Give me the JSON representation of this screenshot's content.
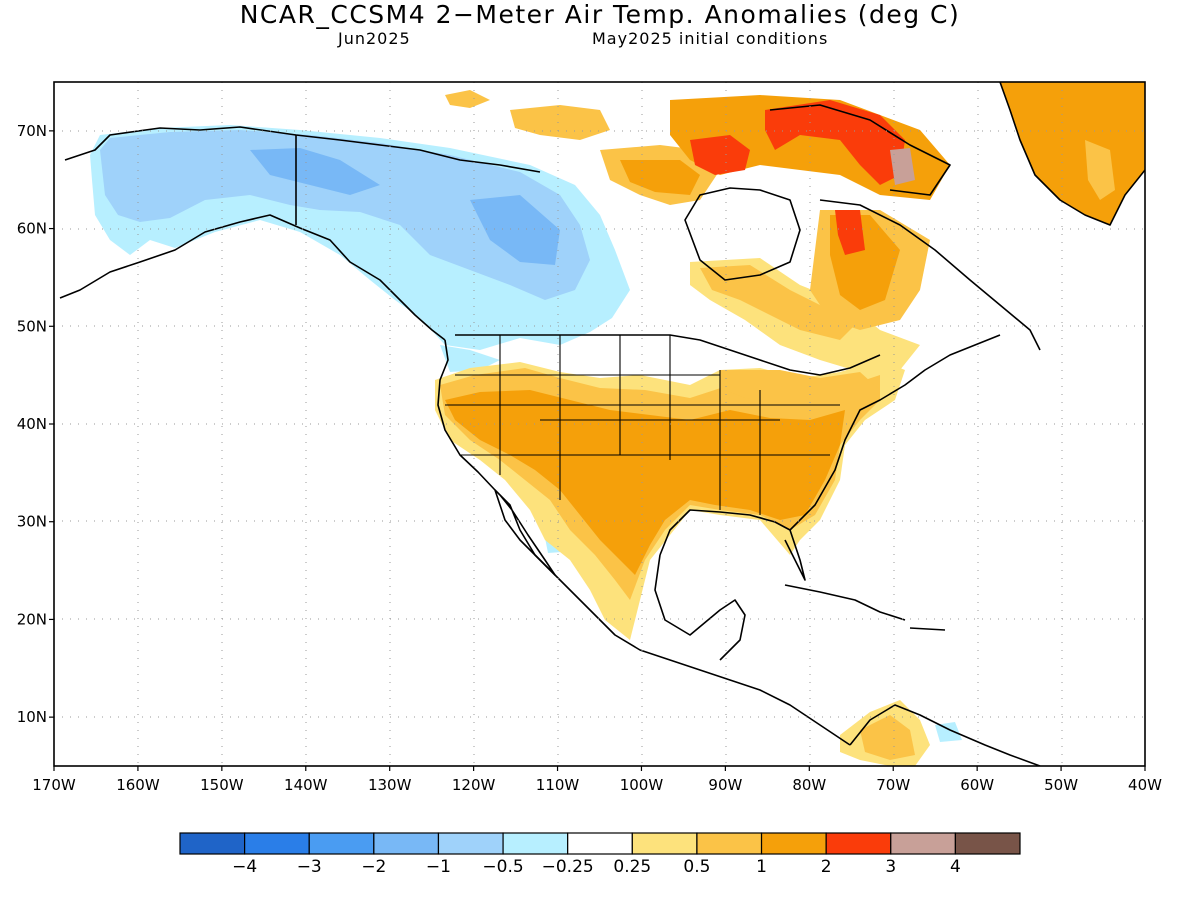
{
  "header": {
    "title": "NCAR_CCSM4 2−Meter Air Temp. Anomalies (deg C)",
    "valid_month": "Jun2025",
    "init_conditions": "May2025 initial conditions"
  },
  "map": {
    "lon_range": [
      -170,
      -40
    ],
    "lat_range": [
      5,
      75
    ],
    "lat_labels": [
      "70N",
      "60N",
      "50N",
      "40N",
      "30N",
      "20N",
      "10N"
    ],
    "lon_labels": [
      "170W",
      "160W",
      "150W",
      "140W",
      "130W",
      "120W",
      "110W",
      "100W",
      "90W",
      "80W",
      "70W",
      "60W",
      "50W",
      "40W"
    ],
    "grid": "dotted"
  },
  "colorbar": {
    "colors": [
      "#1f64c8",
      "#2a7ee8",
      "#4a9cf2",
      "#78b8f6",
      "#9fd2fa",
      "#b7efff",
      "#ffffff",
      "#fde27c",
      "#fbc347",
      "#f5a00a",
      "#fa3c0a",
      "#c8a098",
      "#785448"
    ],
    "labels": [
      "−4",
      "−3",
      "−2",
      "−1",
      "−0.5",
      "−0.25",
      "0.25",
      "0.5",
      "1",
      "2",
      "3",
      "4"
    ]
  },
  "anomaly_regions": [
    {
      "name": "alaska-yukon",
      "level": "-1 to -0.5"
    },
    {
      "name": "western-canada",
      "level": "-1 to -0.25"
    },
    {
      "name": "contiguous-us-south",
      "level": "1 to 2"
    },
    {
      "name": "arctic-archipelago",
      "level": "2 to 3"
    },
    {
      "name": "greenland",
      "level": "1 to 2"
    },
    {
      "name": "quebec-labrador",
      "level": "0.5 to 2"
    }
  ]
}
